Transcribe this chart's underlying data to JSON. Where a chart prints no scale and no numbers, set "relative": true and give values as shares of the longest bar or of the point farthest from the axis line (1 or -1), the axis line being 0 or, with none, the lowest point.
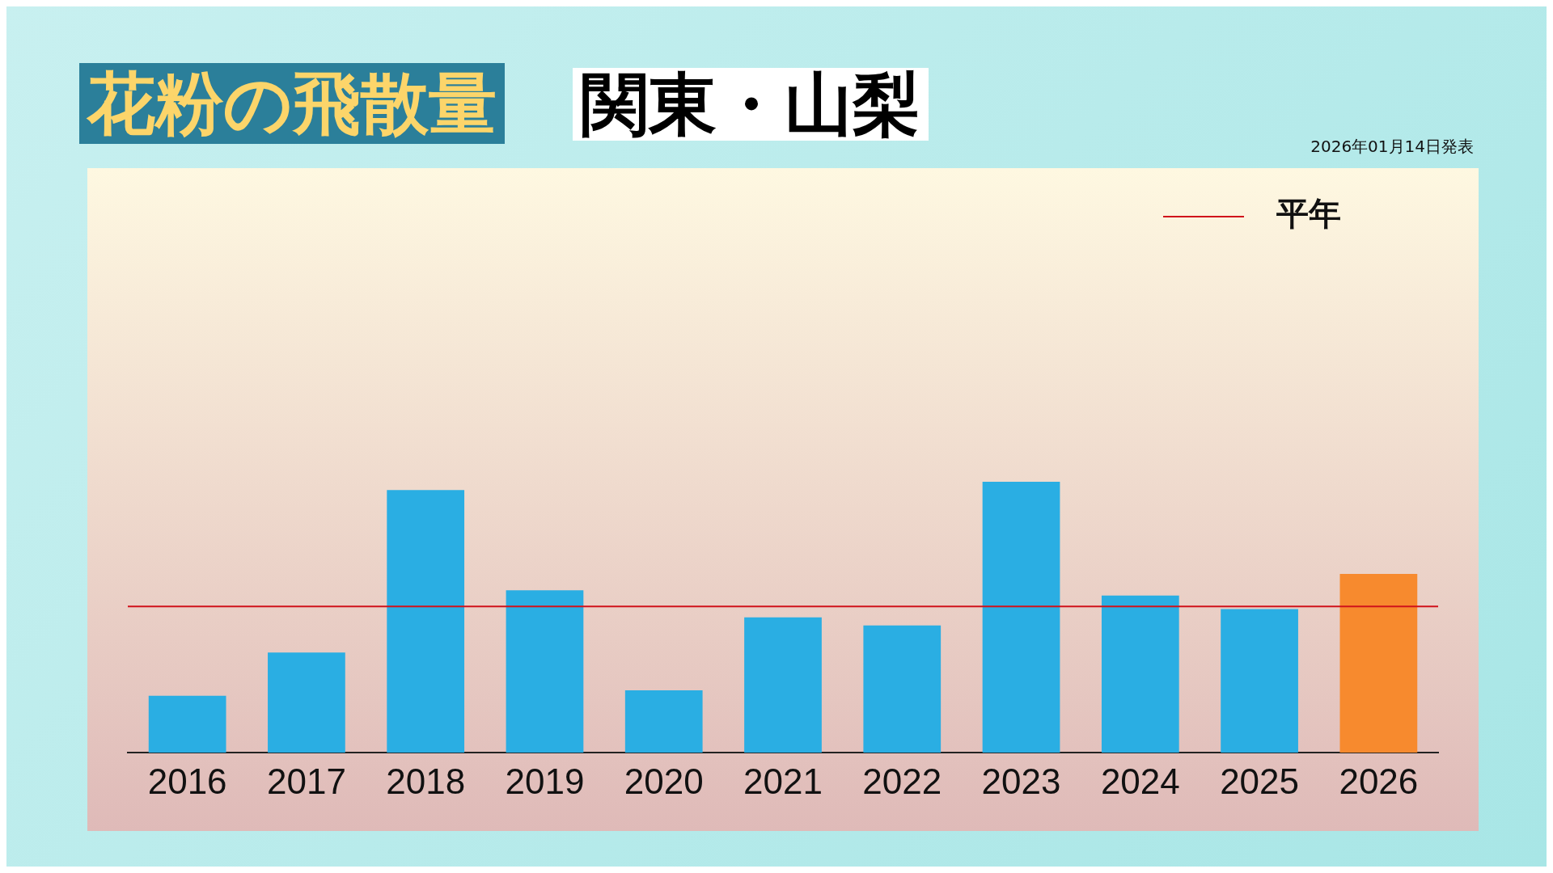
{
  "chart_data": {
    "type": "bar",
    "title": "花粉の飛散量",
    "subtitle": "関東・山梨",
    "annotations": [
      "2026年01月14日発表"
    ],
    "categories": [
      "2016",
      "2017",
      "2018",
      "2019",
      "2020",
      "2021",
      "2022",
      "2023",
      "2024",
      "2025",
      "2026"
    ],
    "values": [
      0.21,
      0.37,
      0.97,
      0.6,
      0.23,
      0.5,
      0.47,
      1,
      0.58,
      0.53,
      0.66
    ],
    "colors": [
      "#2aaee3",
      "#2aaee3",
      "#2aaee3",
      "#2aaee3",
      "#2aaee3",
      "#2aaee3",
      "#2aaee3",
      "#2aaee3",
      "#2aaee3",
      "#2aaee3",
      "#f78a2e"
    ],
    "relative": true,
    "ref_lines": [
      {
        "axis": "y",
        "value": 0.54,
        "label": "平年",
        "color": "#d0121b"
      }
    ],
    "legend": "top right",
    "grid": false
  }
}
